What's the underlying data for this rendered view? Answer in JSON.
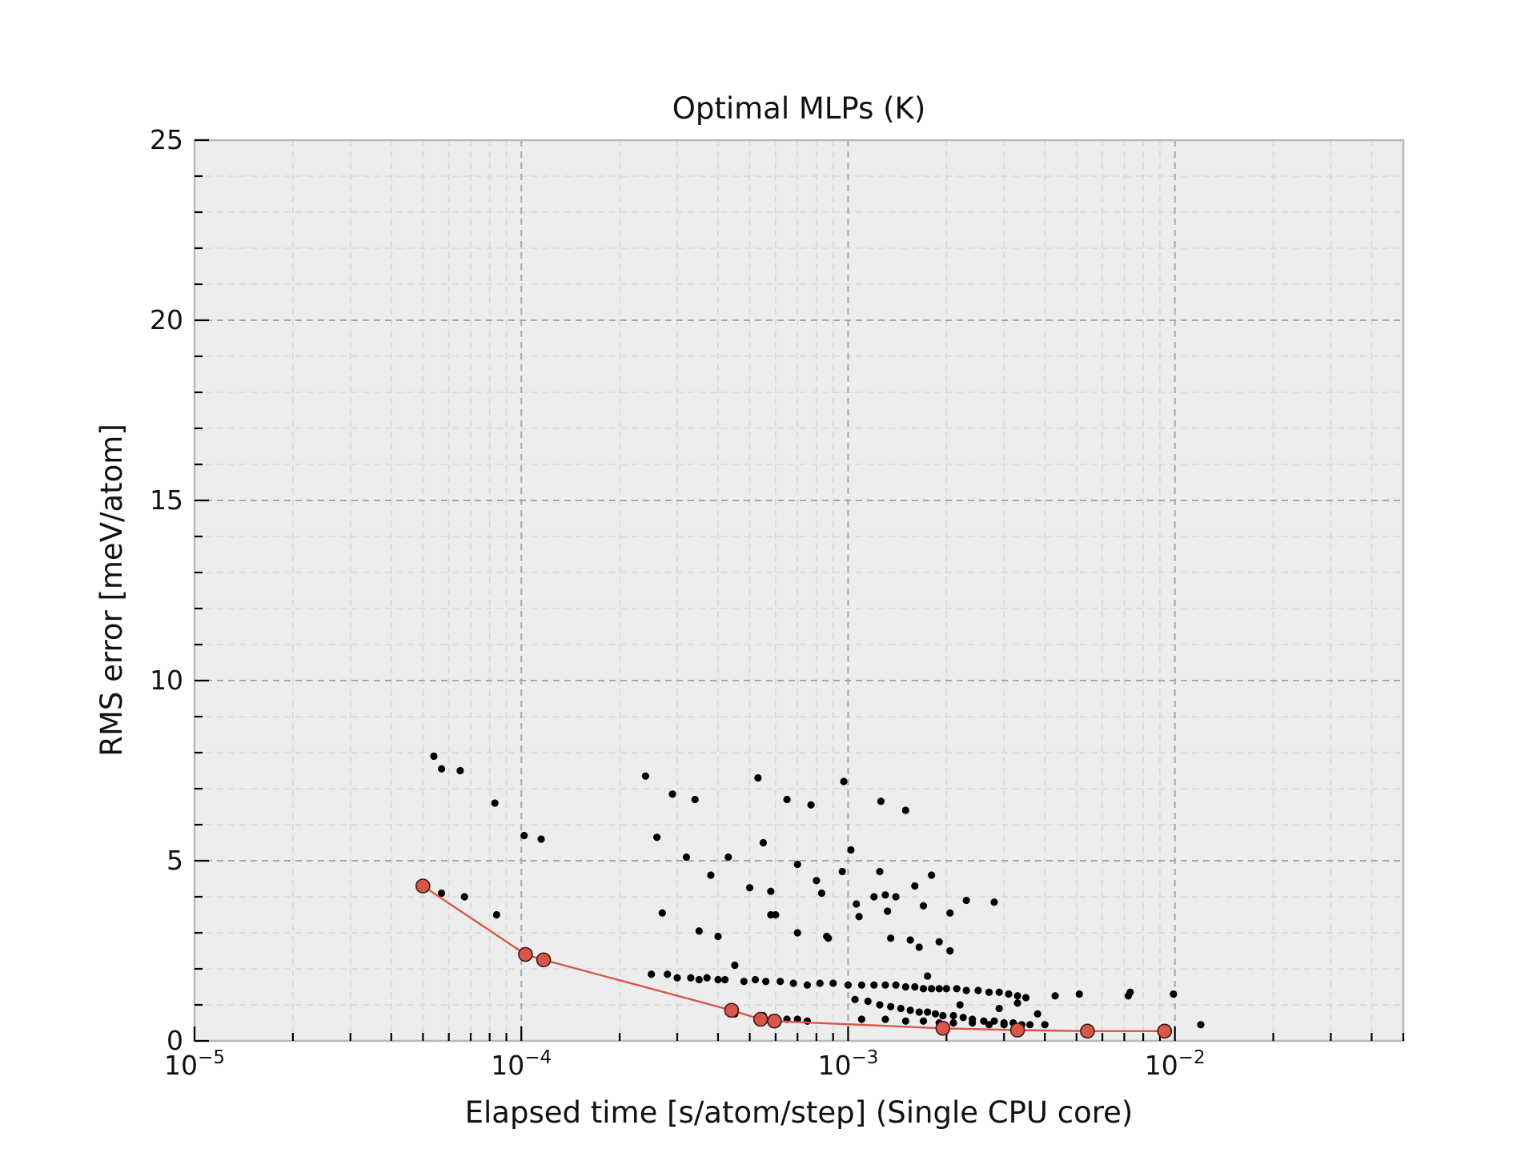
{
  "chart_data": {
    "type": "scatter",
    "title": "Optimal MLPs (K)",
    "xlabel": "Elapsed time [s/atom/step] (Single CPU core)",
    "ylabel": "RMS error [meV/atom]",
    "xscale": "log",
    "xlim": [
      1e-05,
      0.05
    ],
    "ylim": [
      0,
      25
    ],
    "grid": true,
    "x_ticks": [
      {
        "base": "10",
        "exp": "−5",
        "value": 1e-05
      },
      {
        "base": "10",
        "exp": "−4",
        "value": 0.0001
      },
      {
        "base": "10",
        "exp": "−3",
        "value": 0.001
      },
      {
        "base": "10",
        "exp": "−2",
        "value": 0.01
      }
    ],
    "y_ticks": [
      {
        "label": "0",
        "value": 0
      },
      {
        "label": "5",
        "value": 5
      },
      {
        "label": "10",
        "value": 10
      },
      {
        "label": "15",
        "value": 15
      },
      {
        "label": "20",
        "value": 20
      },
      {
        "label": "25",
        "value": 25
      }
    ],
    "colors": {
      "background": "#ededed",
      "frame": "#b9b9b9",
      "grid_major": "#a8a8a8",
      "grid_minor": "#d9d9d9",
      "points": "#000000",
      "pareto": "#d9574a",
      "pareto_edge": "#3a1a16"
    },
    "series": [
      {
        "kind": "all-models",
        "marker": "small-black-dot",
        "x": [
          5.4e-05,
          5.7e-05,
          6.5e-05,
          8.3e-05,
          0.000102,
          0.000115,
          5.7e-05,
          6.7e-05,
          8.4e-05,
          0.00024,
          0.00029,
          0.00034,
          0.00026,
          0.00032,
          0.00038,
          0.00043,
          0.00027,
          0.00035,
          0.0004,
          0.00053,
          0.00055,
          0.00058,
          0.00065,
          0.00077,
          0.00097,
          0.0007,
          0.0008,
          0.00096,
          0.00058,
          0.0005,
          0.0006,
          0.0007,
          0.00083,
          0.00086,
          0.00087,
          0.00102,
          0.00106,
          0.00108,
          0.0012,
          0.00126,
          0.0013,
          0.00132,
          0.00135,
          0.0014,
          0.0015,
          0.0016,
          0.0017,
          0.0018,
          0.00125,
          0.00155,
          0.00165,
          0.00175,
          0.00205,
          0.0023,
          0.0028,
          0.00205,
          0.0019,
          0.00025,
          0.00028,
          0.0003,
          0.00033,
          0.00035,
          0.00037,
          0.0004,
          0.00042,
          0.00045,
          0.00048,
          0.00052,
          0.00056,
          0.00062,
          0.00068,
          0.00075,
          0.00082,
          0.0009,
          0.001,
          0.0011,
          0.0012,
          0.0013,
          0.0014,
          0.0015,
          0.0016,
          0.0017,
          0.0018,
          0.0019,
          0.002,
          0.00215,
          0.0023,
          0.0025,
          0.0027,
          0.0029,
          0.0031,
          0.0033,
          0.0035,
          0.00105,
          0.00115,
          0.00125,
          0.00135,
          0.00145,
          0.00155,
          0.00165,
          0.00175,
          0.00185,
          0.00195,
          0.0021,
          0.00225,
          0.0024,
          0.0026,
          0.0028,
          0.003,
          0.0032,
          0.0034,
          0.0036,
          0.004,
          0.0011,
          0.0013,
          0.0015,
          0.0017,
          0.0019,
          0.0021,
          0.0024,
          0.0027,
          0.003,
          0.0033,
          0.00045,
          0.00055,
          0.0006,
          0.00065,
          0.0007,
          0.00075,
          0.0043,
          0.0051,
          0.0073,
          0.0072,
          0.0099,
          0.012,
          0.0033,
          0.0038,
          0.0029,
          0.0022
        ],
        "y": [
          7.9,
          7.55,
          7.5,
          6.6,
          5.7,
          5.6,
          4.1,
          4.0,
          3.5,
          7.35,
          6.85,
          6.7,
          5.65,
          5.1,
          4.6,
          5.1,
          3.55,
          3.05,
          2.9,
          7.3,
          5.5,
          4.15,
          6.7,
          6.55,
          7.2,
          4.9,
          4.45,
          4.7,
          3.5,
          4.25,
          3.5,
          3.0,
          4.1,
          2.9,
          2.85,
          5.3,
          3.8,
          3.45,
          4.0,
          6.65,
          4.05,
          3.6,
          2.85,
          4.0,
          6.4,
          4.3,
          3.75,
          4.6,
          4.7,
          2.8,
          2.6,
          1.8,
          3.55,
          3.9,
          3.85,
          2.5,
          2.75,
          1.85,
          1.85,
          1.75,
          1.75,
          1.7,
          1.75,
          1.7,
          1.7,
          2.1,
          1.65,
          1.7,
          1.65,
          1.65,
          1.6,
          1.55,
          1.6,
          1.6,
          1.55,
          1.55,
          1.55,
          1.55,
          1.55,
          1.5,
          1.5,
          1.45,
          1.45,
          1.45,
          1.45,
          1.45,
          1.4,
          1.4,
          1.35,
          1.35,
          1.3,
          1.25,
          1.2,
          1.15,
          1.1,
          1.0,
          0.95,
          0.9,
          0.85,
          0.8,
          0.8,
          0.75,
          0.7,
          0.7,
          0.65,
          0.6,
          0.55,
          0.55,
          0.5,
          0.5,
          0.45,
          0.45,
          0.45,
          0.6,
          0.6,
          0.55,
          0.55,
          0.5,
          0.5,
          0.5,
          0.45,
          0.45,
          0.4,
          0.75,
          0.7,
          0.65,
          0.6,
          0.6,
          0.55,
          1.25,
          1.3,
          1.35,
          1.25,
          1.3,
          0.45,
          1.05,
          0.75,
          0.9,
          1.0
        ]
      },
      {
        "kind": "pareto-front",
        "marker": "red-circle-with-line",
        "x": [
          5e-05,
          0.000103,
          0.000117,
          0.00044,
          0.00054,
          0.000595,
          0.00195,
          0.0033,
          0.0054,
          0.0093
        ],
        "y": [
          4.3,
          2.4,
          2.25,
          0.85,
          0.6,
          0.55,
          0.35,
          0.3,
          0.27,
          0.27
        ]
      }
    ]
  }
}
